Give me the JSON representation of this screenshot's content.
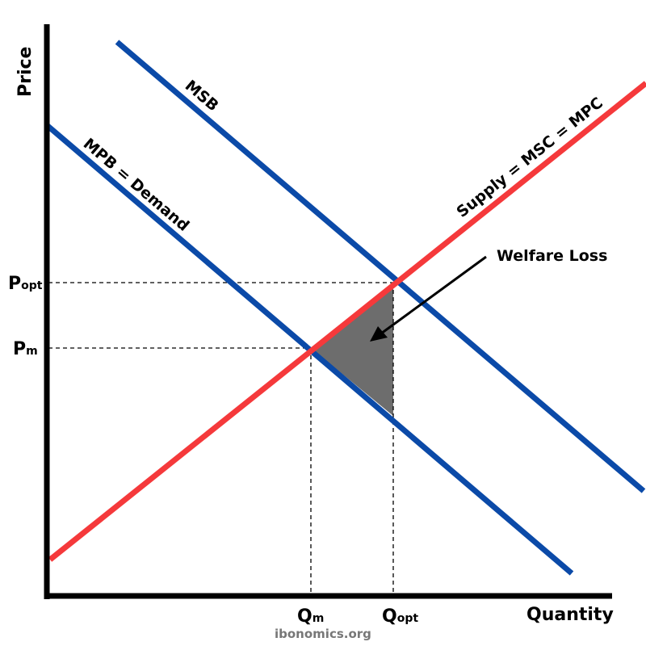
{
  "axes": {
    "y_label": "Price",
    "x_label": "Quantity"
  },
  "curves": {
    "msb": {
      "label": "MSB",
      "color": "#0b4aa8"
    },
    "mpb": {
      "label": "MPB = Demand",
      "color": "#0b4aa8"
    },
    "supply": {
      "label": "Supply = MSC = MPC",
      "color": "#f5393b"
    }
  },
  "price_labels": {
    "popt_main": "P",
    "popt_sub": "opt",
    "pm_main": "P",
    "pm_sub": "m"
  },
  "quantity_labels": {
    "qm_main": "Q",
    "qm_sub": "m",
    "qopt_main": "Q",
    "qopt_sub": "opt"
  },
  "welfare_loss": {
    "label": "Welfare Loss",
    "color": "#6d6d6d"
  },
  "watermark": "ibonomics.org"
}
